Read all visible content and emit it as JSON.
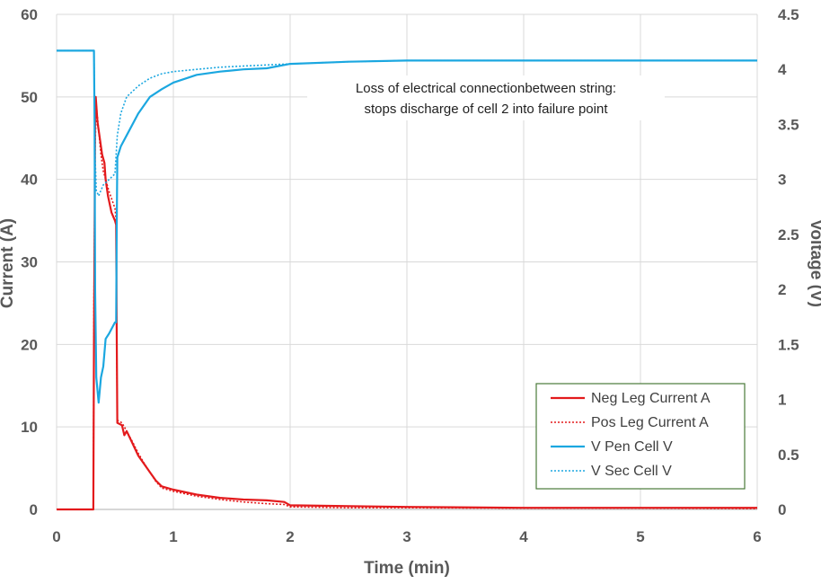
{
  "chart_data": {
    "type": "line",
    "xlabel": "Time (min)",
    "ylabel": "Current (A)",
    "y2label": "Voltage (V)",
    "xlim": [
      0,
      6
    ],
    "ylim": [
      0,
      60
    ],
    "y2lim": [
      0,
      4.5
    ],
    "x_ticks": [
      "0",
      "1",
      "2",
      "3",
      "4",
      "5",
      "6"
    ],
    "y_ticks": [
      "0",
      "10",
      "20",
      "30",
      "40",
      "50",
      "60"
    ],
    "y2_ticks": [
      "0",
      "0.5",
      "1",
      "1.5",
      "2",
      "2.5",
      "3",
      "3.5",
      "4",
      "4.5"
    ],
    "grid": true,
    "legend_position": "bottom-right",
    "annotation": [
      "Loss of electrical connectionbetween  string:",
      "stops discharge of cell 2 into failure point"
    ],
    "series": [
      {
        "name": "Neg Leg Current A",
        "axis": "left",
        "color": "#e31a1c",
        "style": "solid",
        "points": [
          [
            0,
            0
          ],
          [
            0.315,
            0
          ],
          [
            0.32,
            20
          ],
          [
            0.325,
            34
          ],
          [
            0.33,
            48
          ],
          [
            0.335,
            50
          ],
          [
            0.35,
            47
          ],
          [
            0.37,
            45
          ],
          [
            0.39,
            43
          ],
          [
            0.41,
            42
          ],
          [
            0.42,
            40
          ],
          [
            0.44,
            38
          ],
          [
            0.47,
            36
          ],
          [
            0.5,
            35
          ],
          [
            0.51,
            34.5
          ],
          [
            0.515,
            22
          ],
          [
            0.52,
            10.5
          ],
          [
            0.56,
            10.2
          ],
          [
            0.58,
            9
          ],
          [
            0.6,
            9.5
          ],
          [
            0.65,
            8
          ],
          [
            0.7,
            6.5
          ],
          [
            0.75,
            5.5
          ],
          [
            0.8,
            4.5
          ],
          [
            0.85,
            3.5
          ],
          [
            0.9,
            2.8
          ],
          [
            1,
            2.4
          ],
          [
            1.2,
            1.8
          ],
          [
            1.4,
            1.4
          ],
          [
            1.6,
            1.2
          ],
          [
            1.8,
            1.1
          ],
          [
            1.95,
            0.9
          ],
          [
            2.0,
            0.5
          ],
          [
            2.5,
            0.4
          ],
          [
            3,
            0.3
          ],
          [
            4,
            0.2
          ],
          [
            5,
            0.2
          ],
          [
            6,
            0.2
          ]
        ]
      },
      {
        "name": "Pos Leg Current A",
        "axis": "left",
        "color": "#e31a1c",
        "style": "dotted",
        "points": [
          [
            0,
            0
          ],
          [
            0.315,
            0
          ],
          [
            0.32,
            25
          ],
          [
            0.33,
            44
          ],
          [
            0.34,
            49
          ],
          [
            0.36,
            46
          ],
          [
            0.38,
            43
          ],
          [
            0.4,
            41
          ],
          [
            0.42,
            40
          ],
          [
            0.45,
            38.5
          ],
          [
            0.5,
            36.5
          ],
          [
            0.51,
            35
          ],
          [
            0.515,
            20
          ],
          [
            0.52,
            10.8
          ],
          [
            0.56,
            10.5
          ],
          [
            0.6,
            9.5
          ],
          [
            0.65,
            8.2
          ],
          [
            0.7,
            6.8
          ],
          [
            0.75,
            5.6
          ],
          [
            0.8,
            4.5
          ],
          [
            0.85,
            3.4
          ],
          [
            0.9,
            2.6
          ],
          [
            1,
            2.2
          ],
          [
            1.2,
            1.6
          ],
          [
            1.4,
            1.2
          ],
          [
            1.6,
            0.9
          ],
          [
            1.8,
            0.7
          ],
          [
            1.95,
            0.6
          ],
          [
            2.0,
            0.3
          ],
          [
            2.5,
            0.2
          ],
          [
            3,
            0.2
          ],
          [
            4,
            0.15
          ],
          [
            5,
            0.15
          ],
          [
            6,
            0.1
          ]
        ]
      },
      {
        "name": "V Pen Cell V",
        "axis": "right",
        "color": "#1ba7e0",
        "style": "solid",
        "points": [
          [
            0,
            4.17
          ],
          [
            0.31,
            4.17
          ],
          [
            0.32,
            4.17
          ],
          [
            0.325,
            3.5
          ],
          [
            0.33,
            2.0
          ],
          [
            0.34,
            1.2
          ],
          [
            0.36,
            0.97
          ],
          [
            0.38,
            1.2
          ],
          [
            0.4,
            1.3
          ],
          [
            0.42,
            1.55
          ],
          [
            0.45,
            1.6
          ],
          [
            0.5,
            1.7
          ],
          [
            0.51,
            1.7
          ],
          [
            0.515,
            2.5
          ],
          [
            0.52,
            3.2
          ],
          [
            0.55,
            3.3
          ],
          [
            0.6,
            3.4
          ],
          [
            0.7,
            3.6
          ],
          [
            0.8,
            3.75
          ],
          [
            0.9,
            3.82
          ],
          [
            1,
            3.88
          ],
          [
            1.2,
            3.95
          ],
          [
            1.4,
            3.98
          ],
          [
            1.6,
            4.0
          ],
          [
            1.8,
            4.01
          ],
          [
            2,
            4.05
          ],
          [
            2.5,
            4.07
          ],
          [
            3,
            4.08
          ],
          [
            4,
            4.08
          ],
          [
            5,
            4.08
          ],
          [
            6,
            4.08
          ]
        ]
      },
      {
        "name": "V Sec Cell V",
        "axis": "right",
        "color": "#1ba7e0",
        "style": "dotted",
        "points": [
          [
            0,
            4.17
          ],
          [
            0.31,
            4.17
          ],
          [
            0.32,
            4.17
          ],
          [
            0.33,
            3.2
          ],
          [
            0.34,
            2.9
          ],
          [
            0.36,
            2.85
          ],
          [
            0.4,
            2.95
          ],
          [
            0.45,
            3.0
          ],
          [
            0.5,
            3.05
          ],
          [
            0.52,
            3.4
          ],
          [
            0.55,
            3.6
          ],
          [
            0.6,
            3.75
          ],
          [
            0.7,
            3.85
          ],
          [
            0.8,
            3.92
          ],
          [
            0.9,
            3.96
          ],
          [
            1,
            3.98
          ],
          [
            1.2,
            4.0
          ],
          [
            1.4,
            4.02
          ],
          [
            1.6,
            4.03
          ],
          [
            1.8,
            4.04
          ],
          [
            2,
            4.05
          ],
          [
            2.5,
            4.07
          ],
          [
            3,
            4.08
          ],
          [
            4,
            4.08
          ],
          [
            5,
            4.08
          ],
          [
            6,
            4.08
          ]
        ]
      }
    ]
  }
}
